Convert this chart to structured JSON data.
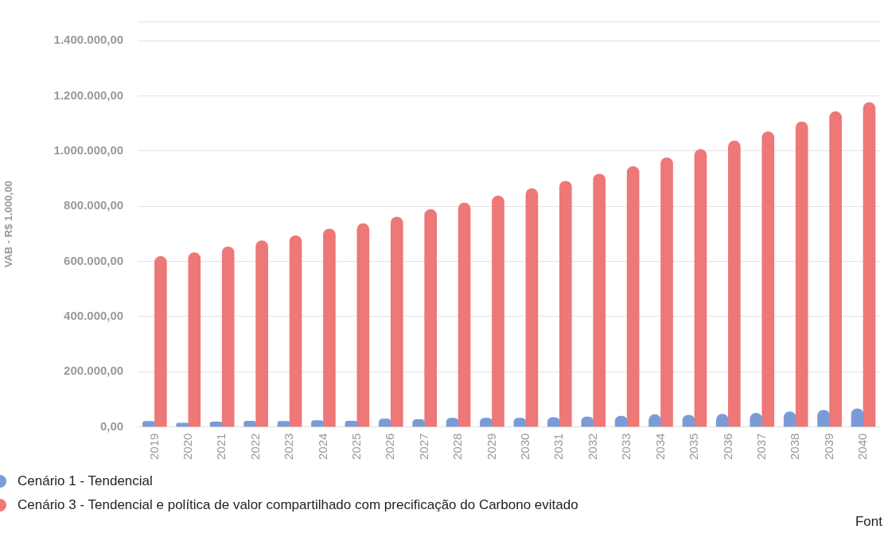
{
  "chart_data": {
    "type": "bar",
    "ylabel": "VAB - R$ 1.000,00",
    "categories": [
      "2019",
      "2020",
      "2021",
      "2022",
      "2023",
      "2024",
      "2025",
      "2026",
      "2027",
      "2028",
      "2029",
      "2030",
      "2031",
      "2032",
      "2033",
      "2034",
      "2035",
      "2036",
      "2037",
      "2038",
      "2039",
      "2040"
    ],
    "series": [
      {
        "name": "Cenário 1 - Tendencial",
        "color": "#7b9bd6",
        "values": [
          20000,
          14000,
          18000,
          21000,
          20000,
          23000,
          21000,
          29000,
          27000,
          32000,
          32000,
          32000,
          34000,
          36000,
          39000,
          45000,
          43000,
          46000,
          50000,
          55000,
          61000,
          66000
        ]
      },
      {
        "name": "Cenário 3 - Tendencial e política de valor compartilhado com precificação do Carbono evitado",
        "color": "#ee7777",
        "values": [
          618000,
          632000,
          653000,
          675000,
          693000,
          718000,
          737000,
          761000,
          788000,
          812000,
          837000,
          864000,
          891000,
          917000,
          944000,
          976000,
          1006000,
          1037000,
          1070000,
          1106000,
          1143000,
          1176000
        ]
      }
    ],
    "ylim": [
      0,
      1470000
    ],
    "yticks": [
      {
        "value": 0,
        "label": "0,00"
      },
      {
        "value": 200000,
        "label": "200.000,00"
      },
      {
        "value": 400000,
        "label": "400.000,00"
      },
      {
        "value": 600000,
        "label": "600.000,00"
      },
      {
        "value": 800000,
        "label": "800.000,00"
      },
      {
        "value": 1000000,
        "label": "1.000.000,00"
      },
      {
        "value": 1200000,
        "label": "1.200.000,00"
      },
      {
        "value": 1400000,
        "label": "1.400.000,00"
      }
    ],
    "grid": "y",
    "legend": "bottom left",
    "annotations": [
      "Font"
    ]
  }
}
